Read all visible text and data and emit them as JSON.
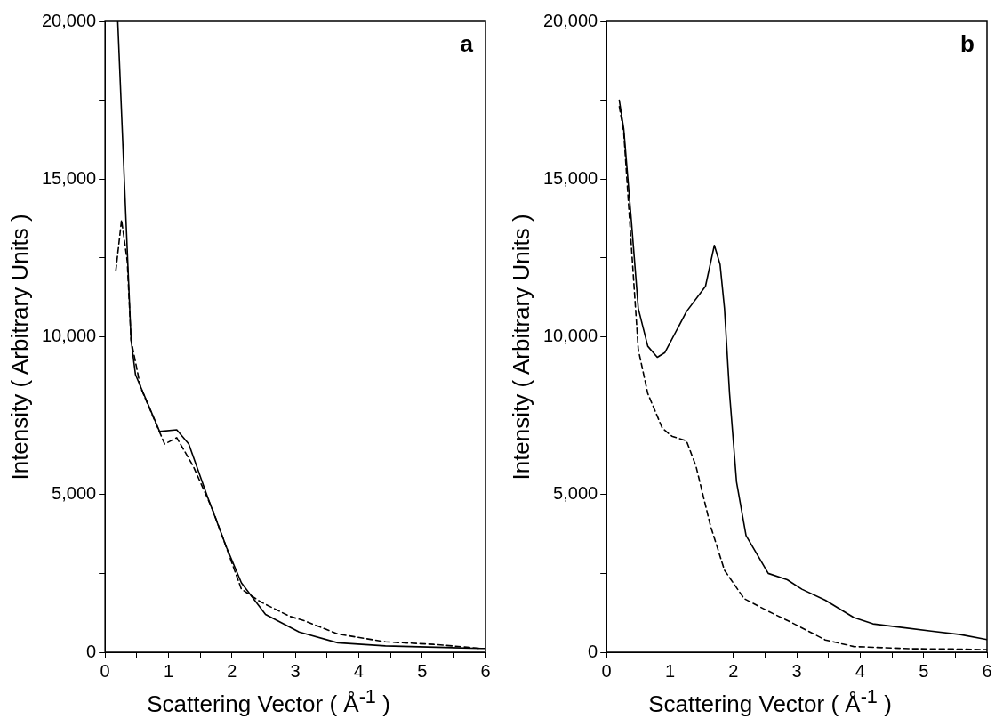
{
  "chart_data": [
    {
      "type": "line",
      "title": "a",
      "xlabel": "Scattering Vector  ( Å$^{-1}$ )",
      "ylabel": "Intensity  ( Arbitrary Units )",
      "xlim": [
        0,
        6
      ],
      "ylim": [
        0,
        20000
      ],
      "xticks": [
        0,
        {
          "value": 0.5,
          "label": null
        },
        1,
        {
          "value": 1.5,
          "label": null
        },
        2,
        {
          "value": 2.5,
          "label": null
        },
        3,
        {
          "value": 3.5,
          "label": null
        },
        4,
        {
          "value": 4.5,
          "label": null
        },
        5,
        {
          "value": 5.5,
          "label": null
        },
        6
      ],
      "yticks": [
        {
          "value": 0,
          "label": "0"
        },
        {
          "value": 2500,
          "label": null
        },
        {
          "value": 5000,
          "label": "5,000"
        },
        {
          "value": 7500,
          "label": null
        },
        {
          "value": 10000,
          "label": "10,000"
        },
        {
          "value": 12500,
          "label": null
        },
        {
          "value": 15000,
          "label": "15,000"
        },
        {
          "value": 17500,
          "label": null
        },
        {
          "value": 20000,
          "label": "20,000"
        }
      ],
      "grid": false,
      "legend": false,
      "series": [
        {
          "color": "#000000",
          "line_style": "solid",
          "x": [
            0.2,
            0.33,
            0.41,
            0.48,
            0.86,
            1.13,
            1.32,
            1.62,
            1.92,
            2.15,
            2.53,
            3.06,
            3.67,
            4.42,
            5.94,
            6
          ],
          "values": [
            20000,
            13700,
            9900,
            8800,
            7000,
            7050,
            6600,
            4900,
            3300,
            2200,
            1200,
            640,
            300,
            200,
            120,
            120
          ]
        },
        {
          "color": "#000000",
          "line_style": "dashed",
          "x": [
            0.17,
            0.26,
            0.35,
            0.41,
            0.56,
            0.94,
            1.13,
            1.39,
            1.7,
            2.15,
            2.45,
            2.91,
            3.14,
            3.67,
            4.42,
            5.18,
            5.94
          ],
          "values": [
            12100,
            13700,
            12400,
            9900,
            8400,
            6600,
            6800,
            5900,
            4500,
            2000,
            1600,
            1140,
            1000,
            580,
            330,
            250,
            120
          ]
        }
      ]
    },
    {
      "type": "line",
      "title": "b",
      "xlabel": "Scattering Vector  ( Å$^{-1}$ )",
      "ylabel": "Intensity  ( Arbitrary Units )",
      "xlim": [
        0,
        6
      ],
      "ylim": [
        0,
        20000
      ],
      "xticks": [
        0,
        {
          "value": 0.5,
          "label": null
        },
        1,
        {
          "value": 1.5,
          "label": null
        },
        2,
        {
          "value": 2.5,
          "label": null
        },
        3,
        {
          "value": 3.5,
          "label": null
        },
        4,
        {
          "value": 4.5,
          "label": null
        },
        5,
        {
          "value": 5.5,
          "label": null
        },
        6
      ],
      "yticks": [
        {
          "value": 0,
          "label": "0"
        },
        {
          "value": 2500,
          "label": null
        },
        {
          "value": 5000,
          "label": "5,000"
        },
        {
          "value": 7500,
          "label": null
        },
        {
          "value": 10000,
          "label": "10,000"
        },
        {
          "value": 12500,
          "label": null
        },
        {
          "value": 15000,
          "label": "15,000"
        },
        {
          "value": 17500,
          "label": null
        },
        {
          "value": 20000,
          "label": "20,000"
        }
      ],
      "grid": false,
      "legend": false,
      "series": [
        {
          "color": "#000000",
          "line_style": "solid",
          "x": [
            0.2,
            0.27,
            0.39,
            0.5,
            0.65,
            0.8,
            0.92,
            1.26,
            1.56,
            1.7,
            1.79,
            1.86,
            1.94,
            2.05,
            2.2,
            2.55,
            2.85,
            3.08,
            3.45,
            3.9,
            4.2,
            5.12,
            5.58,
            6
          ],
          "values": [
            17500,
            16600,
            13700,
            10900,
            9700,
            9350,
            9500,
            10800,
            11600,
            12900,
            12300,
            10900,
            8200,
            5400,
            3700,
            2500,
            2300,
            2000,
            1650,
            1100,
            900,
            670,
            560,
            400
          ]
        },
        {
          "color": "#000000",
          "line_style": "dashed",
          "x": [
            0.2,
            0.27,
            0.39,
            0.5,
            0.65,
            0.88,
            1.03,
            1.26,
            1.41,
            1.64,
            1.86,
            2.17,
            2.55,
            2.92,
            3.45,
            3.9,
            4.82,
            5.58,
            6
          ],
          "values": [
            17300,
            16500,
            12900,
            9600,
            8200,
            7100,
            6850,
            6700,
            5900,
            4000,
            2600,
            1700,
            1300,
            940,
            390,
            180,
            110,
            100,
            80
          ]
        }
      ]
    }
  ]
}
